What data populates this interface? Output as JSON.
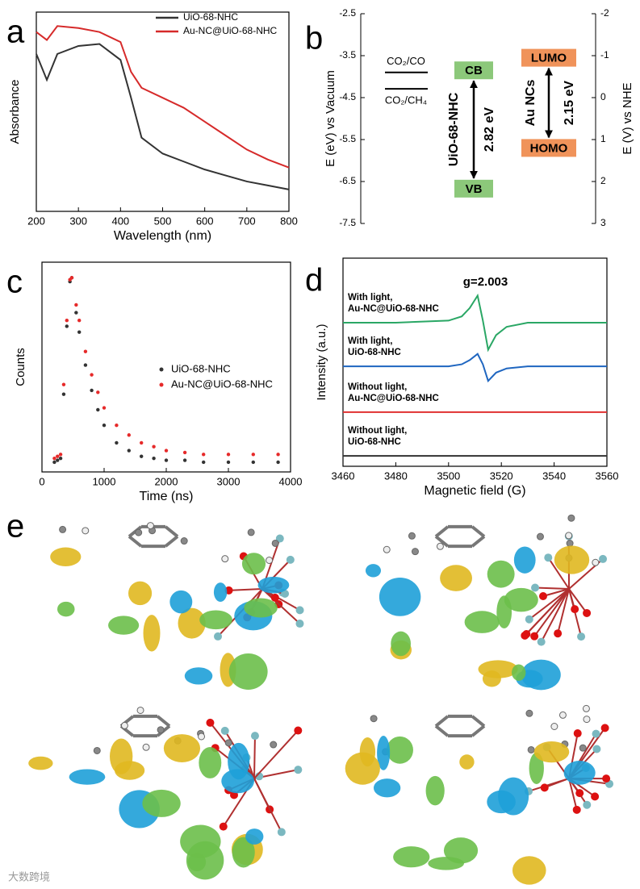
{
  "chart_data": [
    {
      "type": "line",
      "panel_label": "a",
      "xlabel": "Wavelength (nm)",
      "ylabel": "Absorbance",
      "xlim": [
        200,
        800
      ],
      "xticks": [
        200,
        300,
        400,
        500,
        600,
        700,
        800
      ],
      "ylim": [
        0,
        1
      ],
      "legend": "top-right",
      "x": [
        200,
        225,
        250,
        300,
        350,
        400,
        425,
        450,
        500,
        550,
        600,
        650,
        700,
        750,
        800
      ],
      "series": [
        {
          "name": "UiO-68-NHC",
          "color": "#333333",
          "values": [
            0.79,
            0.66,
            0.79,
            0.83,
            0.84,
            0.76,
            0.57,
            0.37,
            0.29,
            0.25,
            0.21,
            0.18,
            0.15,
            0.13,
            0.11
          ]
        },
        {
          "name": "Au-NC@UiO-68-NHC",
          "color": "#d62a2a",
          "values": [
            0.9,
            0.86,
            0.93,
            0.92,
            0.9,
            0.85,
            0.7,
            0.62,
            0.57,
            0.52,
            0.45,
            0.38,
            0.31,
            0.26,
            0.22
          ]
        }
      ]
    },
    {
      "type": "energy",
      "panel_label": "b",
      "ylabel": "E (eV) vs Vacuum",
      "y2label": "E (V) vs NHE",
      "ylim": [
        -7.5,
        -2.5
      ],
      "yticks": [
        -2.5,
        -3.5,
        -4.5,
        -5.5,
        -6.5,
        -7.5
      ],
      "y2lim": [
        3,
        -2
      ],
      "y2ticks": [
        -2,
        -1,
        0,
        1,
        2,
        3
      ],
      "potentials": [
        {
          "name": "CO₂/CO",
          "value": -3.9
        },
        {
          "name": "CO₂/CH₄",
          "value": -4.29
        }
      ],
      "bands": [
        {
          "material": "UiO-68-NHC",
          "color": "#8cc87a",
          "upper": {
            "name": "CB",
            "value": -3.85
          },
          "lower": {
            "name": "VB",
            "value": -6.67
          },
          "gap_label": "2.82 eV"
        },
        {
          "material": "Au NCs",
          "color": "#f0935a",
          "upper": {
            "name": "LUMO",
            "value": -3.55
          },
          "lower": {
            "name": "HOMO",
            "value": -5.7
          },
          "gap_label": "2.15 eV"
        }
      ]
    },
    {
      "type": "scatter",
      "panel_label": "c",
      "xlabel": "Time (ns)",
      "ylabel": "Counts",
      "xlim": [
        0,
        4000
      ],
      "xticks": [
        0,
        1000,
        2000,
        3000,
        4000
      ],
      "ylim": [
        0,
        1.08
      ],
      "legend": "center-right",
      "x": [
        200,
        250,
        300,
        350,
        400,
        450,
        480,
        550,
        600,
        700,
        800,
        900,
        1000,
        1200,
        1400,
        1600,
        1800,
        2000,
        2300,
        2600,
        3000,
        3400,
        3800
      ],
      "series": [
        {
          "name": "UiO-68-NHC",
          "color": "#333333",
          "values": [
            0.05,
            0.06,
            0.07,
            0.4,
            0.75,
            0.98,
            1.0,
            0.82,
            0.72,
            0.55,
            0.42,
            0.32,
            0.24,
            0.15,
            0.11,
            0.08,
            0.07,
            0.06,
            0.06,
            0.05,
            0.05,
            0.05,
            0.05
          ]
        },
        {
          "name": "Au-NC@UiO-68-NHC",
          "color": "#e62a2a",
          "values": [
            0.07,
            0.08,
            0.09,
            0.45,
            0.78,
            0.99,
            1.0,
            0.86,
            0.78,
            0.62,
            0.5,
            0.41,
            0.33,
            0.24,
            0.19,
            0.15,
            0.13,
            0.11,
            0.1,
            0.09,
            0.09,
            0.09,
            0.09
          ]
        }
      ]
    },
    {
      "type": "line",
      "panel_label": "d",
      "xlabel": "Magnetic field (G)",
      "ylabel": "Intensity (a.u.)",
      "annotation": "g=2.003",
      "xlim": [
        3460,
        3560
      ],
      "xticks": [
        3460,
        3480,
        3500,
        3520,
        3540,
        3560
      ],
      "ylim": [
        0,
        1
      ],
      "legend": "inline",
      "x": [
        3460,
        3480,
        3500,
        3505,
        3508,
        3511,
        3513,
        3515,
        3518,
        3522,
        3530,
        3540,
        3560
      ],
      "series": [
        {
          "name": "With light,\nAu-NC@UiO-68-NHC",
          "color": "#2aa765",
          "values": [
            0.69,
            0.69,
            0.7,
            0.72,
            0.76,
            0.82,
            0.7,
            0.56,
            0.63,
            0.67,
            0.69,
            0.69,
            0.69
          ]
        },
        {
          "name": "With light,\nUiO-68-NHC",
          "color": "#1f66c0",
          "values": [
            0.48,
            0.48,
            0.48,
            0.49,
            0.51,
            0.54,
            0.49,
            0.41,
            0.45,
            0.47,
            0.48,
            0.48,
            0.48
          ]
        },
        {
          "name": "Without light,\nAu-NC@UiO-68-NHC",
          "color": "#e03030",
          "values": [
            0.26,
            0.26,
            0.26,
            0.26,
            0.26,
            0.26,
            0.26,
            0.26,
            0.26,
            0.26,
            0.26,
            0.26,
            0.26
          ]
        },
        {
          "name": "Without light,\nUiO-68-NHC",
          "color": "#333333",
          "values": [
            0.05,
            0.05,
            0.05,
            0.05,
            0.05,
            0.05,
            0.05,
            0.05,
            0.05,
            0.05,
            0.05,
            0.05,
            0.05
          ]
        }
      ]
    }
  ],
  "panel_e": {
    "label": "e"
  },
  "watermark": "大数跨境"
}
